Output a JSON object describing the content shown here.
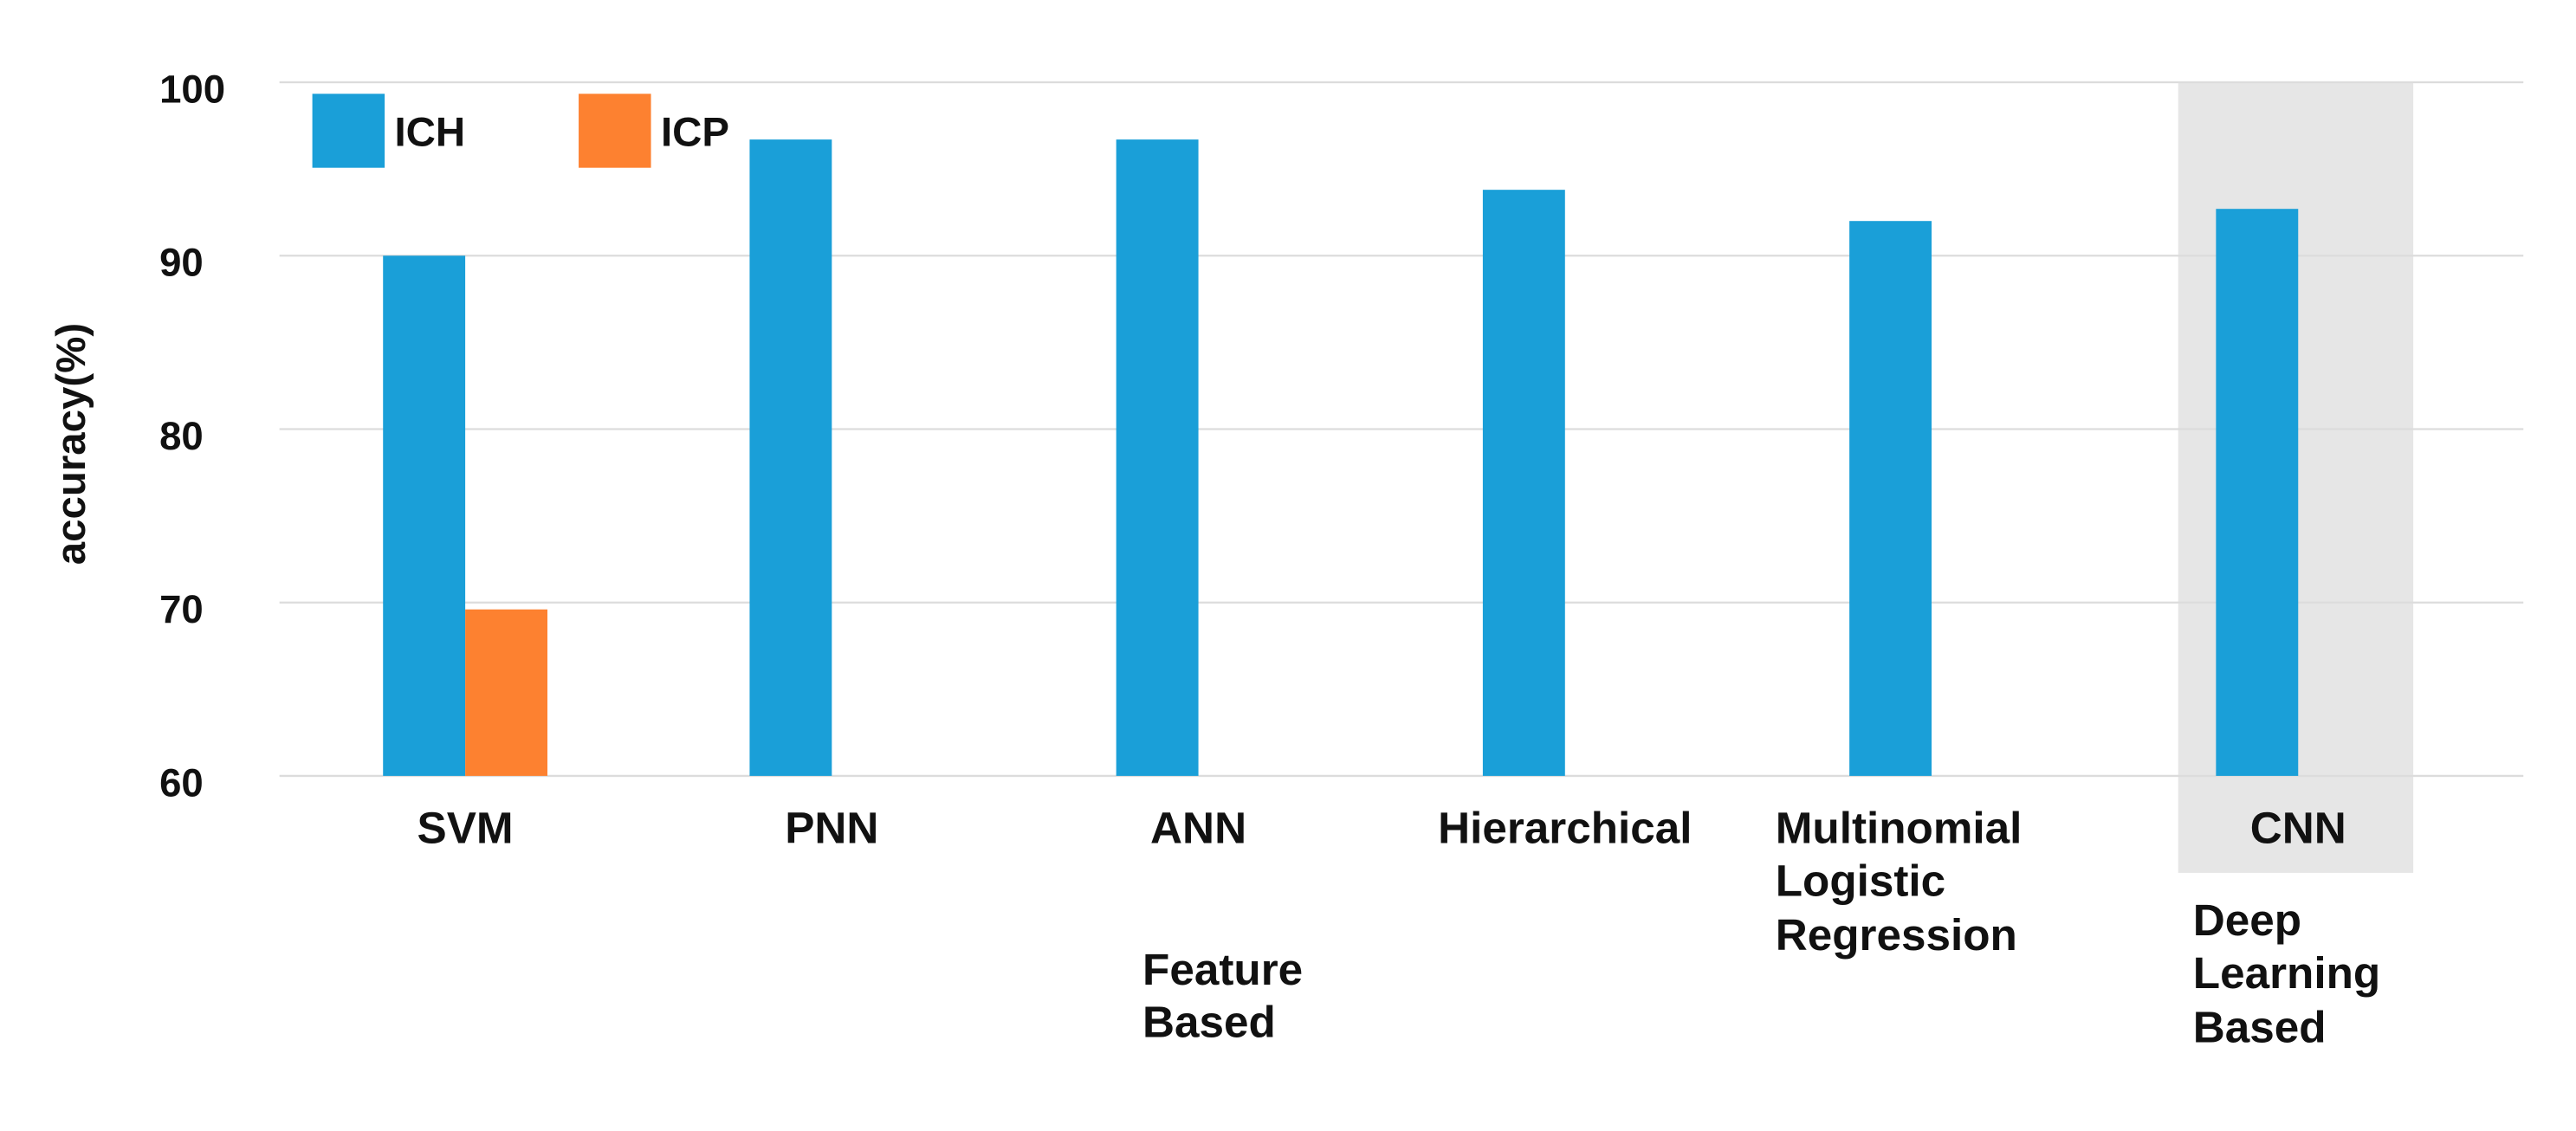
{
  "chart_data": {
    "type": "bar",
    "y_label": "accuracy(%)",
    "categories": [
      "SVM",
      "PNN",
      "ANN",
      "Hierarchical",
      "Multinomial Logistic Regression",
      "CNN"
    ],
    "series": [
      {
        "name": "ICH",
        "color": "#1a9fd8",
        "values": [
          90,
          96.7,
          96.7,
          93.8,
          92,
          92.7
        ]
      },
      {
        "name": "ICP",
        "color": "#fd8130",
        "values": [
          69.6,
          null,
          null,
          null,
          null,
          null
        ]
      }
    ],
    "annotations": [
      "Feature Based",
      "Deep Learning Based"
    ],
    "ylim": [
      60,
      100
    ],
    "yticks": [
      60,
      70,
      80,
      90,
      100
    ],
    "grid": true,
    "legend": "upper left"
  }
}
